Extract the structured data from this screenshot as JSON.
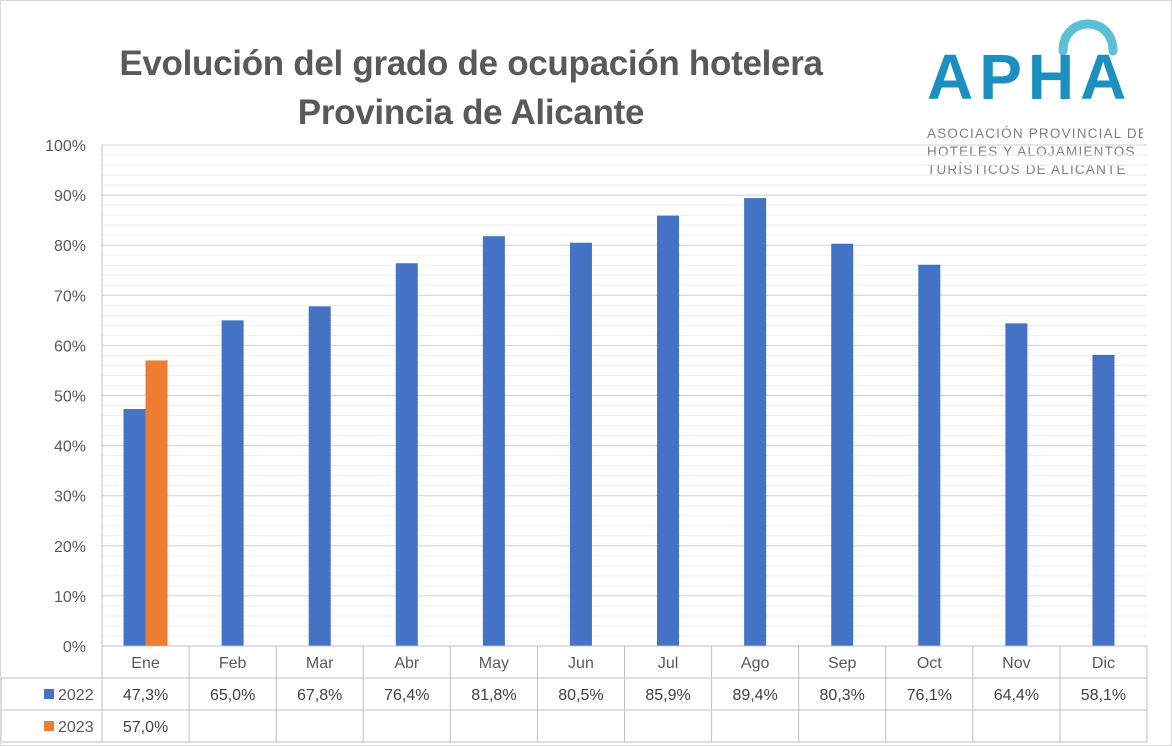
{
  "title_lines": [
    "Evolución del grado de ocupación hotelera",
    "Provincia de Alicante"
  ],
  "logo": {
    "wordmark": "APHA",
    "tagline": [
      "ASOCIACIÓN PROVINCIAL DE",
      "HOTELES Y ALOJAMIENTOS",
      "TURÍSTICOS DE ALICANTE"
    ],
    "color": "#1b8fc0"
  },
  "chart_data": {
    "type": "bar",
    "title": "Evolución del grado de ocupación hotelera Provincia de Alicante",
    "categories": [
      "Ene",
      "Feb",
      "Mar",
      "Abr",
      "May",
      "Jun",
      "Jul",
      "Ago",
      "Sep",
      "Oct",
      "Nov",
      "Dic"
    ],
    "series": [
      {
        "name": "2022",
        "color": "#4472c4",
        "values": [
          47.3,
          65.0,
          67.8,
          76.4,
          81.8,
          80.5,
          85.9,
          89.4,
          80.3,
          76.1,
          64.4,
          58.1
        ],
        "labels": [
          "47,3%",
          "65,0%",
          "67,8%",
          "76,4%",
          "81,8%",
          "80,5%",
          "85,9%",
          "89,4%",
          "80,3%",
          "76,1%",
          "64,4%",
          "58,1%"
        ]
      },
      {
        "name": "2023",
        "color": "#ed7d31",
        "values": [
          57.0,
          null,
          null,
          null,
          null,
          null,
          null,
          null,
          null,
          null,
          null,
          null
        ],
        "labels": [
          "57,0%",
          "",
          "",
          "",
          "",
          "",
          "",
          "",
          "",
          "",
          "",
          ""
        ]
      }
    ],
    "ylim": [
      0,
      100
    ],
    "yticks": [
      0,
      10,
      20,
      30,
      40,
      50,
      60,
      70,
      80,
      90,
      100
    ],
    "ytick_labels": [
      "0%",
      "10%",
      "20%",
      "30%",
      "40%",
      "50%",
      "60%",
      "70%",
      "80%",
      "90%",
      "100%"
    ],
    "grid": true,
    "legend": "data-table"
  }
}
